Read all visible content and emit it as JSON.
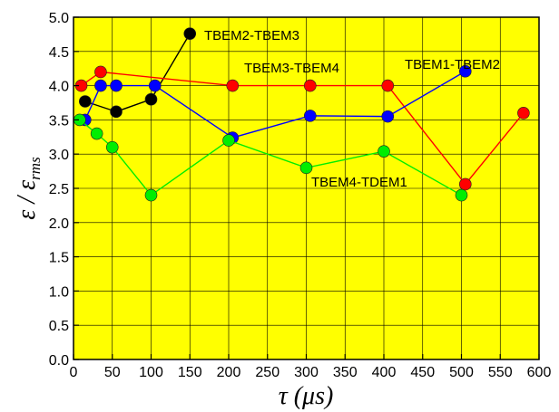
{
  "chart_data": {
    "type": "line",
    "title": "",
    "xlabel": "τ (μs)",
    "ylabel_parts": {
      "main": "ε / ε",
      "sub": "rms"
    },
    "xlim": [
      0,
      600
    ],
    "ylim": [
      0.0,
      5.0
    ],
    "x_ticks": [
      "0",
      "50",
      "100",
      "150",
      "200",
      "250",
      "300",
      "350",
      "400",
      "450",
      "500",
      "550",
      "600"
    ],
    "y_ticks": [
      "0.0",
      "0.5",
      "1.0",
      "1.5",
      "2.0",
      "2.5",
      "3.0",
      "3.5",
      "4.0",
      "4.5",
      "5.0"
    ],
    "grid": true,
    "plot_background": "#ffff00",
    "series": [
      {
        "name": "TBEM2-TBEM3",
        "color": "#000000",
        "points": [
          [
            15,
            3.77
          ],
          [
            55,
            3.62
          ],
          [
            100,
            3.8
          ],
          [
            150,
            4.76
          ]
        ]
      },
      {
        "name": "TBEM3-TBEM4",
        "color": "#ff0000",
        "points": [
          [
            10,
            4.0
          ],
          [
            35,
            4.2
          ],
          [
            205,
            4.0
          ],
          [
            305,
            4.0
          ],
          [
            405,
            4.0
          ],
          [
            505,
            2.56
          ],
          [
            580,
            3.6
          ]
        ]
      },
      {
        "name": "TBEM1-TBEM2",
        "color": "#0000ff",
        "points": [
          [
            15,
            3.5
          ],
          [
            35,
            4.0
          ],
          [
            55,
            4.0
          ],
          [
            105,
            4.0
          ],
          [
            205,
            3.24
          ],
          [
            305,
            3.56
          ],
          [
            405,
            3.55
          ],
          [
            505,
            4.21
          ]
        ]
      },
      {
        "name": "TBEM4-TDEM1",
        "color": "#00ee00",
        "points": [
          [
            8,
            3.5
          ],
          [
            30,
            3.3
          ],
          [
            50,
            3.1
          ],
          [
            100,
            2.4
          ],
          [
            200,
            3.2
          ],
          [
            300,
            2.8
          ],
          [
            400,
            3.04
          ],
          [
            500,
            2.4
          ]
        ]
      }
    ]
  }
}
